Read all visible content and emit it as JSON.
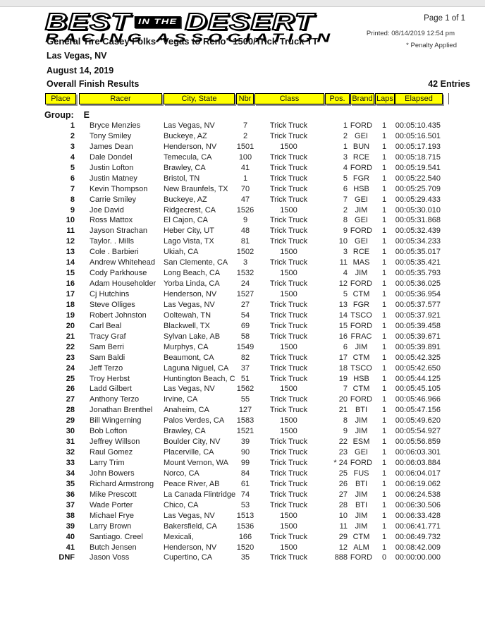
{
  "meta": {
    "page_label": "Page 1 of 1",
    "printed_label": "Printed: 08/14/2019 12:54 pm",
    "penalty_note": "* Penalty Applied"
  },
  "logo": {
    "best": "BEST",
    "in_the": "IN THE",
    "desert": "DESERT",
    "association": "RACING ASSOCIATION"
  },
  "header": {
    "event_title": "General Tire Casey Folks \"Vegas to Reno\" 1500/Trick Truck TT",
    "location": "Las Vegas, NV",
    "date": "August 14, 2019",
    "report_title": "Overall Finish Results",
    "entries": "42 Entries"
  },
  "colors": {
    "header_cell_bg": "#FFFF00",
    "header_cell_border": "#000000",
    "header_cell_shadow": "#9A9A9A",
    "text": "#1C1C1C"
  },
  "table": {
    "columns": [
      "Place",
      "Racer",
      "City, State",
      "Nbr",
      "Class",
      "Pos.",
      "Brand",
      "Laps",
      "Elapsed"
    ],
    "group_label": "Group:",
    "group_value": "E",
    "rows": [
      {
        "place": "1",
        "racer": "Bryce Menzies",
        "city": "Las Vegas, NV",
        "nbr": "7",
        "cls": "Trick Truck",
        "pos": "1",
        "brand": "FORD",
        "laps": "1",
        "elapsed": "00:05:10.435"
      },
      {
        "place": "2",
        "racer": "Tony Smiley",
        "city": "Buckeye, AZ",
        "nbr": "2",
        "cls": "Trick Truck",
        "pos": "2",
        "brand": "GEI",
        "laps": "1",
        "elapsed": "00:05:16.501"
      },
      {
        "place": "3",
        "racer": "James Dean",
        "city": "Henderson, NV",
        "nbr": "1501",
        "cls": "1500",
        "pos": "1",
        "brand": "BUN",
        "laps": "1",
        "elapsed": "00:05:17.193"
      },
      {
        "place": "4",
        "racer": "Dale Dondel",
        "city": "Temecula, CA",
        "nbr": "100",
        "cls": "Trick Truck",
        "pos": "3",
        "brand": "RCE",
        "laps": "1",
        "elapsed": "00:05:18.715"
      },
      {
        "place": "5",
        "racer": "Justin Lofton",
        "city": "Brawley, CA",
        "nbr": "41",
        "cls": "Trick Truck",
        "pos": "4",
        "brand": "FORD",
        "laps": "1",
        "elapsed": "00:05:19.541"
      },
      {
        "place": "6",
        "racer": "Justin Matney",
        "city": "Bristol, TN",
        "nbr": "1",
        "cls": "Trick Truck",
        "pos": "5",
        "brand": "FGR",
        "laps": "1",
        "elapsed": "00:05:22.540"
      },
      {
        "place": "7",
        "racer": "Kevin Thompson",
        "city": "New Braunfels, TX",
        "nbr": "70",
        "cls": "Trick Truck",
        "pos": "6",
        "brand": "HSB",
        "laps": "1",
        "elapsed": "00:05:25.709"
      },
      {
        "place": "8",
        "racer": "Carrie Smiley",
        "city": "Buckeye, AZ",
        "nbr": "47",
        "cls": "Trick Truck",
        "pos": "7",
        "brand": "GEI",
        "laps": "1",
        "elapsed": "00:05:29.433"
      },
      {
        "place": "9",
        "racer": "Joe David",
        "city": "Ridgecrest, CA",
        "nbr": "1526",
        "cls": "1500",
        "pos": "2",
        "brand": "JIM",
        "laps": "1",
        "elapsed": "00:05:30.010"
      },
      {
        "place": "10",
        "racer": "Ross Mattox",
        "city": "El Cajon, CA",
        "nbr": "9",
        "cls": "Trick Truck",
        "pos": "8",
        "brand": "GEI",
        "laps": "1",
        "elapsed": "00:05:31.868"
      },
      {
        "place": "11",
        "racer": "Jayson Strachan",
        "city": "Heber City, UT",
        "nbr": "48",
        "cls": "Trick Truck",
        "pos": "9",
        "brand": "FORD",
        "laps": "1",
        "elapsed": "00:05:32.439"
      },
      {
        "place": "12",
        "racer": "Taylor. . Mills",
        "city": "Lago Vista, TX",
        "nbr": "81",
        "cls": "Trick Truck",
        "pos": "10",
        "brand": "GEI",
        "laps": "1",
        "elapsed": "00:05:34.233"
      },
      {
        "place": "13",
        "racer": "Cole . Barbieri",
        "city": "Ukiah, CA",
        "nbr": "1502",
        "cls": "1500",
        "pos": "3",
        "brand": "RCE",
        "laps": "1",
        "elapsed": "00:05:35.017"
      },
      {
        "place": "14",
        "racer": "Andrew Whitehead",
        "city": "San Clemente, CA",
        "nbr": "3",
        "cls": "Trick Truck",
        "pos": "11",
        "brand": "MAS",
        "laps": "1",
        "elapsed": "00:05:35.421"
      },
      {
        "place": "15",
        "racer": "Cody Parkhouse",
        "city": "Long Beach, CA",
        "nbr": "1532",
        "cls": "1500",
        "pos": "4",
        "brand": "JIM",
        "laps": "1",
        "elapsed": "00:05:35.793"
      },
      {
        "place": "16",
        "racer": "Adam Householder",
        "city": "Yorba Linda, CA",
        "nbr": "24",
        "cls": "Trick Truck",
        "pos": "12",
        "brand": "FORD",
        "laps": "1",
        "elapsed": "00:05:36.025"
      },
      {
        "place": "17",
        "racer": "Cj Hutchins",
        "city": "Henderson, NV",
        "nbr": "1527",
        "cls": "1500",
        "pos": "5",
        "brand": "CTM",
        "laps": "1",
        "elapsed": "00:05:36.954"
      },
      {
        "place": "18",
        "racer": "Steve Olliges",
        "city": "Las Vegas, NV",
        "nbr": "27",
        "cls": "Trick Truck",
        "pos": "13",
        "brand": "FGR",
        "laps": "1",
        "elapsed": "00:05:37.577"
      },
      {
        "place": "19",
        "racer": "Robert Johnston",
        "city": "Ooltewah, TN",
        "nbr": "54",
        "cls": "Trick Truck",
        "pos": "14",
        "brand": "TSCO",
        "laps": "1",
        "elapsed": "00:05:37.921"
      },
      {
        "place": "20",
        "racer": "Carl Beal",
        "city": "Blackwell, TX",
        "nbr": "69",
        "cls": "Trick Truck",
        "pos": "15",
        "brand": "FORD",
        "laps": "1",
        "elapsed": "00:05:39.458"
      },
      {
        "place": "21",
        "racer": "Tracy Graf",
        "city": "Sylvan Lake, AB",
        "nbr": "58",
        "cls": "Trick Truck",
        "pos": "16",
        "brand": "FRAC",
        "laps": "1",
        "elapsed": "00:05:39.671"
      },
      {
        "place": "22",
        "racer": "Sam Berri",
        "city": "Murphys, CA",
        "nbr": "1549",
        "cls": "1500",
        "pos": "6",
        "brand": "JIM",
        "laps": "1",
        "elapsed": "00:05:39.891"
      },
      {
        "place": "23",
        "racer": "Sam Baldi",
        "city": "Beaumont, CA",
        "nbr": "82",
        "cls": "Trick Truck",
        "pos": "17",
        "brand": "CTM",
        "laps": "1",
        "elapsed": "00:05:42.325"
      },
      {
        "place": "24",
        "racer": "Jeff Terzo",
        "city": "Laguna Niguel, CA",
        "nbr": "37",
        "cls": "Trick Truck",
        "pos": "18",
        "brand": "TSCO",
        "laps": "1",
        "elapsed": "00:05:42.650"
      },
      {
        "place": "25",
        "racer": "Troy Herbst",
        "city": "Huntington Beach, C",
        "nbr": "51",
        "cls": "Trick Truck",
        "pos": "19",
        "brand": "HSB",
        "laps": "1",
        "elapsed": "00:05:44.125"
      },
      {
        "place": "26",
        "racer": "Ladd Gilbert",
        "city": "Las Vegas, NV",
        "nbr": "1562",
        "cls": "1500",
        "pos": "7",
        "brand": "CTM",
        "laps": "1",
        "elapsed": "00:05:45.105"
      },
      {
        "place": "27",
        "racer": "Anthony Terzo",
        "city": "Irvine, CA",
        "nbr": "55",
        "cls": "Trick Truck",
        "pos": "20",
        "brand": "FORD",
        "laps": "1",
        "elapsed": "00:05:46.966"
      },
      {
        "place": "28",
        "racer": "Jonathan Brenthel",
        "city": "Anaheim, CA",
        "nbr": "127",
        "cls": "Trick Truck",
        "pos": "21",
        "brand": "BTI",
        "laps": "1",
        "elapsed": "00:05:47.156"
      },
      {
        "place": "29",
        "racer": "Bill Wingerning",
        "city": "Palos Verdes, CA",
        "nbr": "1583",
        "cls": "1500",
        "pos": "8",
        "brand": "JIM",
        "laps": "1",
        "elapsed": "00:05:49.620"
      },
      {
        "place": "30",
        "racer": "Bob Lofton",
        "city": "Brawley, CA",
        "nbr": "1521",
        "cls": "1500",
        "pos": "9",
        "brand": "JIM",
        "laps": "1",
        "elapsed": "00:05:54.927"
      },
      {
        "place": "31",
        "racer": "Jeffrey Willson",
        "city": "Boulder City, NV",
        "nbr": "39",
        "cls": "Trick Truck",
        "pos": "22",
        "brand": "ESM",
        "laps": "1",
        "elapsed": "00:05:56.859"
      },
      {
        "place": "32",
        "racer": "Raul Gomez",
        "city": "Placerville, CA",
        "nbr": "90",
        "cls": "Trick Truck",
        "pos": "23",
        "brand": "GEI",
        "laps": "1",
        "elapsed": "00:06:03.301"
      },
      {
        "place": "33",
        "racer": "Larry Trim",
        "city": "Mount Vernon, WA",
        "nbr": "99",
        "cls": "Trick Truck",
        "pos": "* 24",
        "brand": "FORD",
        "laps": "1",
        "elapsed": "00:06:03.884"
      },
      {
        "place": "34",
        "racer": "John Bowers",
        "city": "Norco, CA",
        "nbr": "84",
        "cls": "Trick Truck",
        "pos": "25",
        "brand": "FUS",
        "laps": "1",
        "elapsed": "00:06:04.017"
      },
      {
        "place": "35",
        "racer": "Richard Armstrong",
        "city": "Peace River, AB",
        "nbr": "61",
        "cls": "Trick Truck",
        "pos": "26",
        "brand": "BTI",
        "laps": "1",
        "elapsed": "00:06:19.062"
      },
      {
        "place": "36",
        "racer": "Mike Prescott",
        "city": "La Canada Flintridge",
        "nbr": "74",
        "cls": "Trick Truck",
        "pos": "27",
        "brand": "JIM",
        "laps": "1",
        "elapsed": "00:06:24.538"
      },
      {
        "place": "37",
        "racer": "Wade Porter",
        "city": "Chico, CA",
        "nbr": "53",
        "cls": "Trick Truck",
        "pos": "28",
        "brand": "BTI",
        "laps": "1",
        "elapsed": "00:06:30.506"
      },
      {
        "place": "38",
        "racer": "Michael Frye",
        "city": "Las Vegas, NV",
        "nbr": "1513",
        "cls": "1500",
        "pos": "10",
        "brand": "JIM",
        "laps": "1",
        "elapsed": "00:06:33.428"
      },
      {
        "place": "39",
        "racer": "Larry Brown",
        "city": "Bakersfield, CA",
        "nbr": "1536",
        "cls": "1500",
        "pos": "11",
        "brand": "JIM",
        "laps": "1",
        "elapsed": "00:06:41.771"
      },
      {
        "place": "40",
        "racer": "Santiago. Creel",
        "city": "Mexicali,",
        "nbr": "166",
        "cls": "Trick Truck",
        "pos": "29",
        "brand": "CTM",
        "laps": "1",
        "elapsed": "00:06:49.732"
      },
      {
        "place": "41",
        "racer": "Butch Jensen",
        "city": "Henderson, NV",
        "nbr": "1520",
        "cls": "1500",
        "pos": "12",
        "brand": "ALM",
        "laps": "1",
        "elapsed": "00:08:42.009"
      },
      {
        "place": "DNF",
        "racer": "Jason Voss",
        "city": "Cupertino, CA",
        "nbr": "35",
        "cls": "Trick Truck",
        "pos": "888",
        "brand": "FORD",
        "laps": "0",
        "elapsed": "00:00:00.000"
      }
    ]
  }
}
